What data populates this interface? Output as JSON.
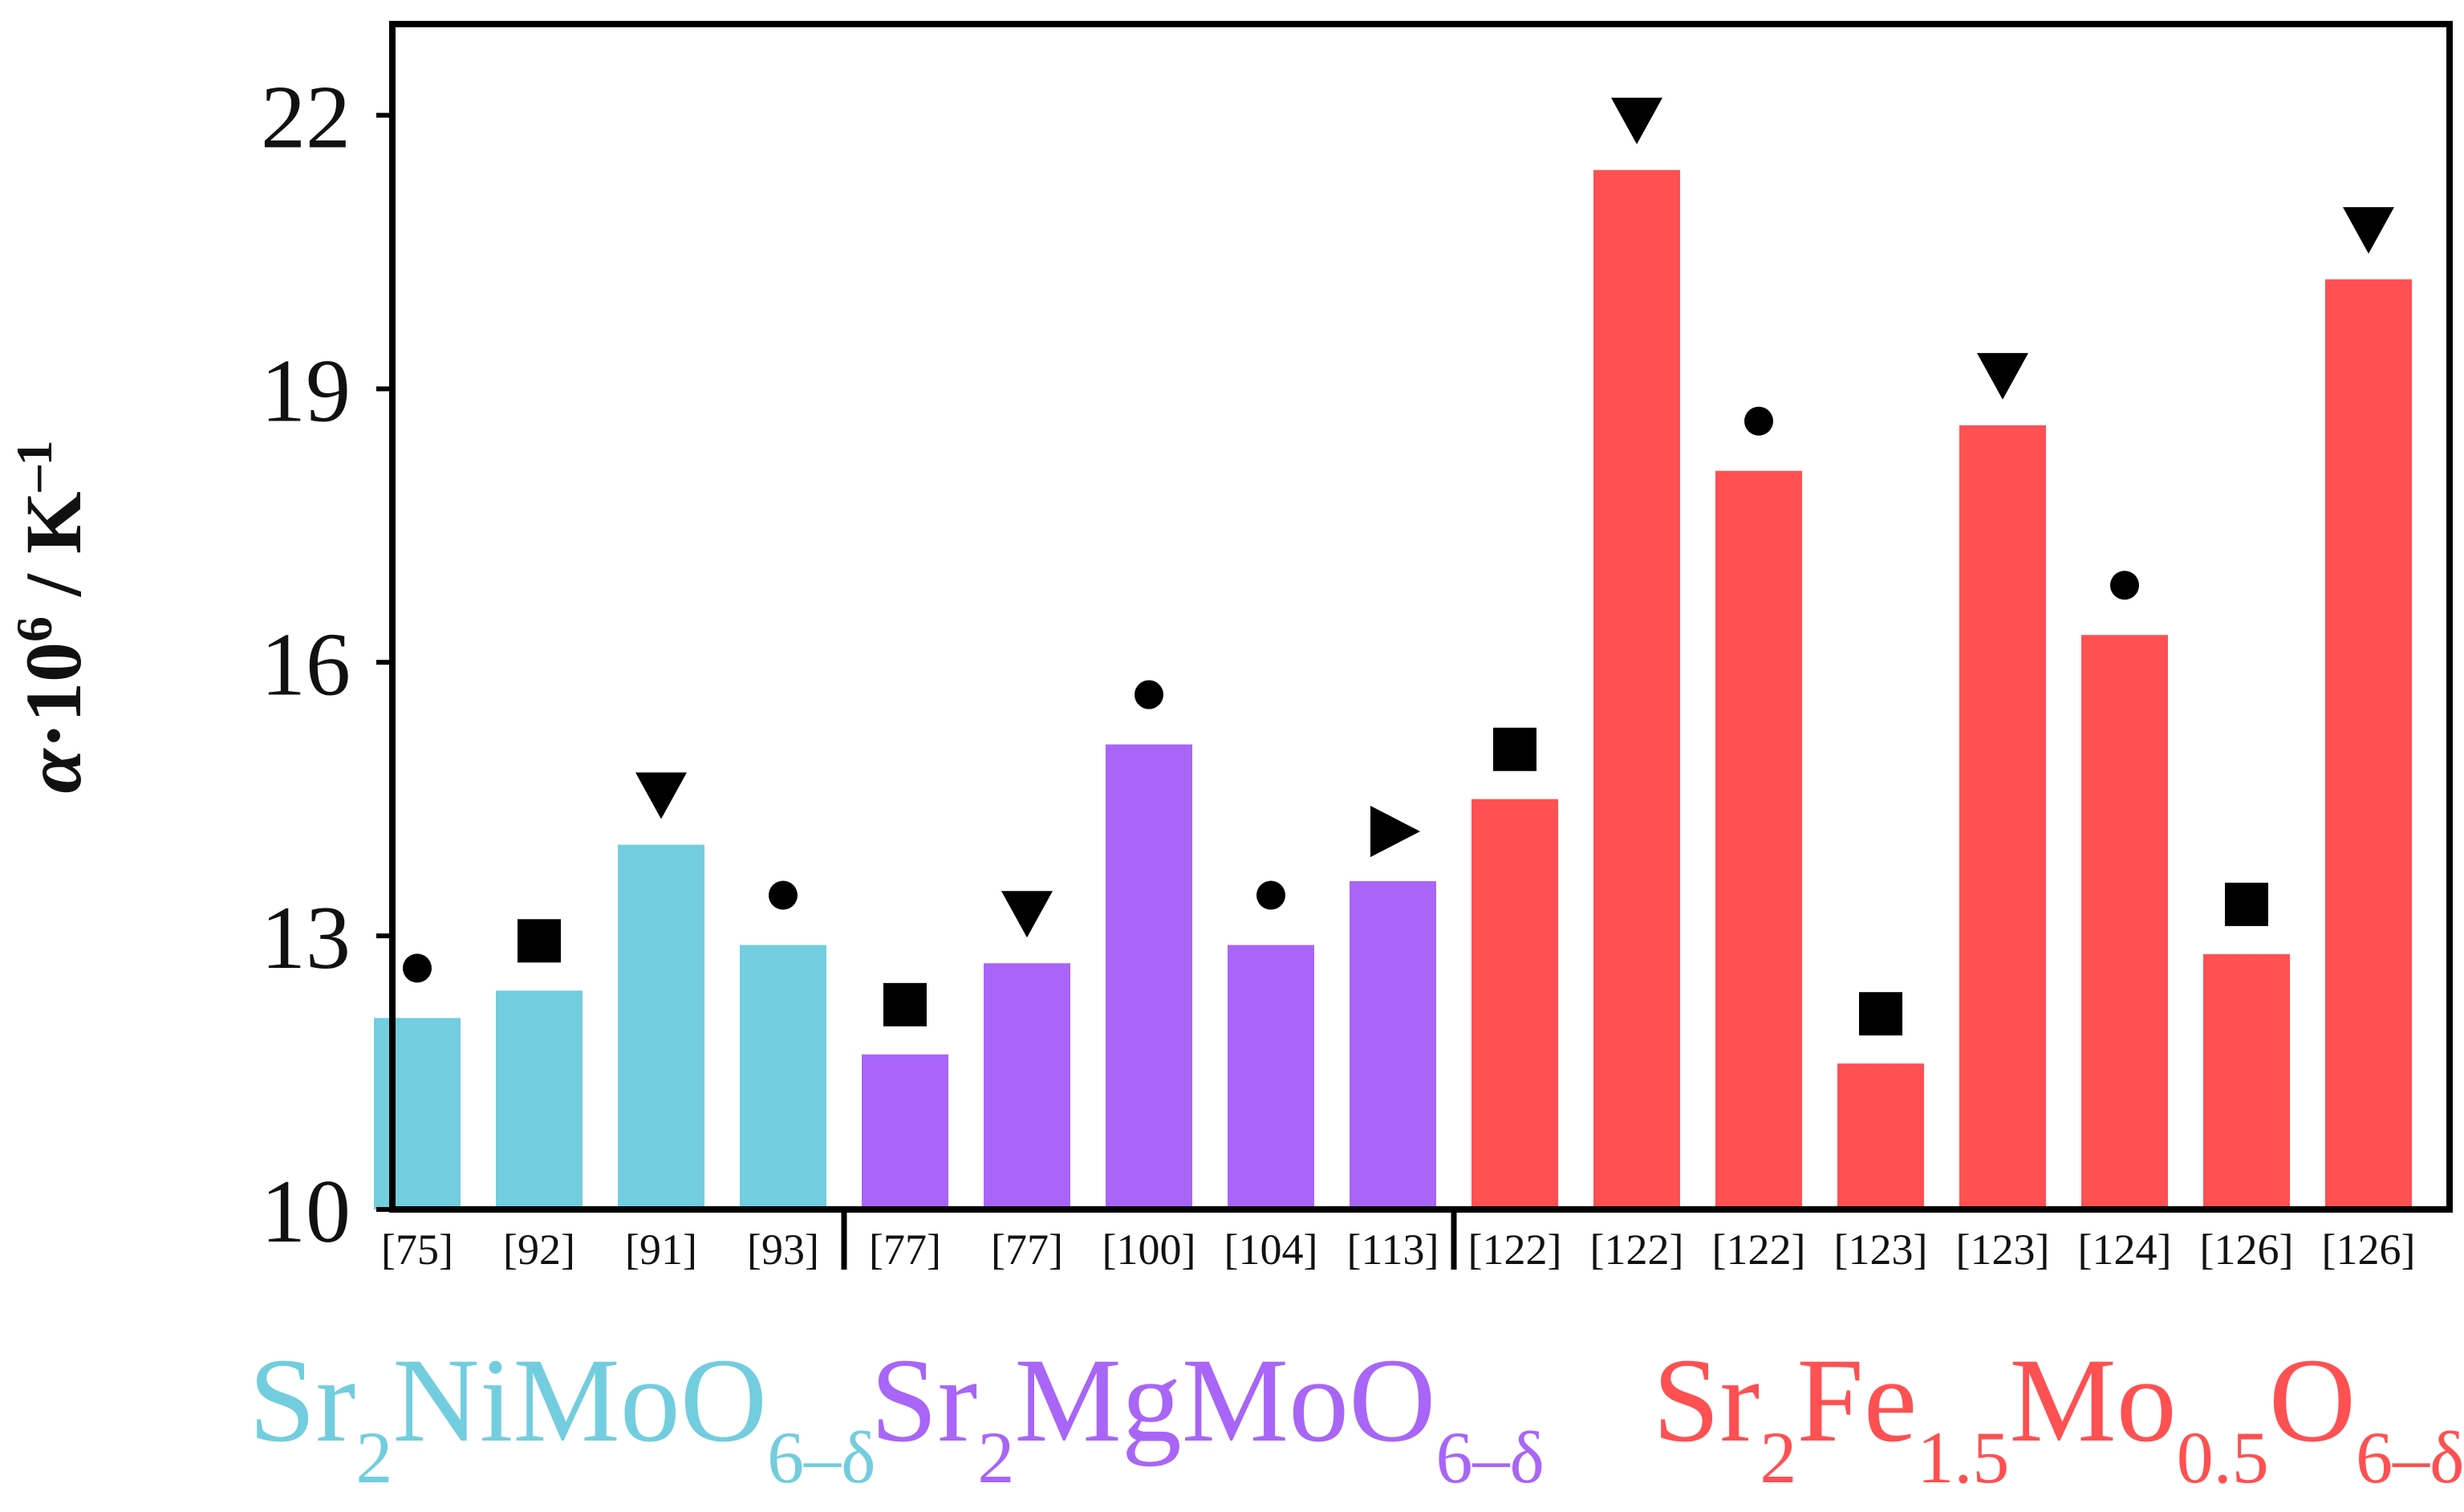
{
  "chart_data": {
    "type": "bar",
    "title": "",
    "xlabel": "",
    "ylabel": {
      "symbol": "α",
      "mid": "·10",
      "exponent": "6",
      "unit": " / K",
      "unit_exponent": "–1"
    },
    "ylim": [
      10,
      23
    ],
    "yticks": [
      "10",
      "13",
      "16",
      "19",
      "22"
    ],
    "grid": false,
    "categories": [
      "[75]",
      "[92]",
      "[91]",
      "[93]",
      "[77]",
      "[77]",
      "[100]",
      "[104]",
      "[113]",
      "[122]",
      "[122]",
      "[122]",
      "[123]",
      "[123]",
      "[124]",
      "[126]",
      "[126]"
    ],
    "values": [
      12.1,
      12.4,
      14.0,
      12.9,
      11.7,
      12.7,
      15.1,
      12.9,
      13.6,
      14.5,
      21.4,
      18.1,
      11.6,
      18.6,
      16.3,
      12.8,
      20.2
    ],
    "groups": [
      {
        "name": "Sr2NiMoO6-δ",
        "label_parts": [
          {
            "text": "Sr",
            "sub": false
          },
          {
            "text": "2",
            "sub": true
          },
          {
            "text": "NiMoO",
            "sub": false
          },
          {
            "text": "6–δ",
            "sub": true
          }
        ],
        "color": "#72CDDE",
        "bar_indices": [
          0,
          1,
          2,
          3
        ]
      },
      {
        "name": "Sr2MgMoO6-δ",
        "label_parts": [
          {
            "text": "Sr",
            "sub": false
          },
          {
            "text": "2",
            "sub": true
          },
          {
            "text": "MgMoO",
            "sub": false
          },
          {
            "text": "6–δ",
            "sub": true
          }
        ],
        "color": "#A865F7",
        "bar_indices": [
          4,
          5,
          6,
          7,
          8
        ]
      },
      {
        "name": "Sr2Fe1.5Mo0.5O6-δ",
        "label_parts": [
          {
            "text": "Sr",
            "sub": false
          },
          {
            "text": "2",
            "sub": true
          },
          {
            "text": "Fe",
            "sub": false
          },
          {
            "text": "1.5",
            "sub": true
          },
          {
            "text": "Mo",
            "sub": false
          },
          {
            "text": "0.5",
            "sub": true
          },
          {
            "text": "O",
            "sub": false
          },
          {
            "text": "6–δ",
            "sub": true
          }
        ],
        "color": "#FF5052",
        "bar_indices": [
          9,
          10,
          11,
          12,
          13,
          14,
          15,
          16
        ]
      }
    ],
    "markers": [
      "circle",
      "square",
      "triangle-down",
      "circle",
      "square",
      "triangle-down",
      "circle",
      "circle",
      "triangle-right",
      "square",
      "triangle-down",
      "circle",
      "square",
      "triangle-down",
      "circle",
      "square",
      "triangle-down"
    ],
    "marker_color": "#000000"
  }
}
